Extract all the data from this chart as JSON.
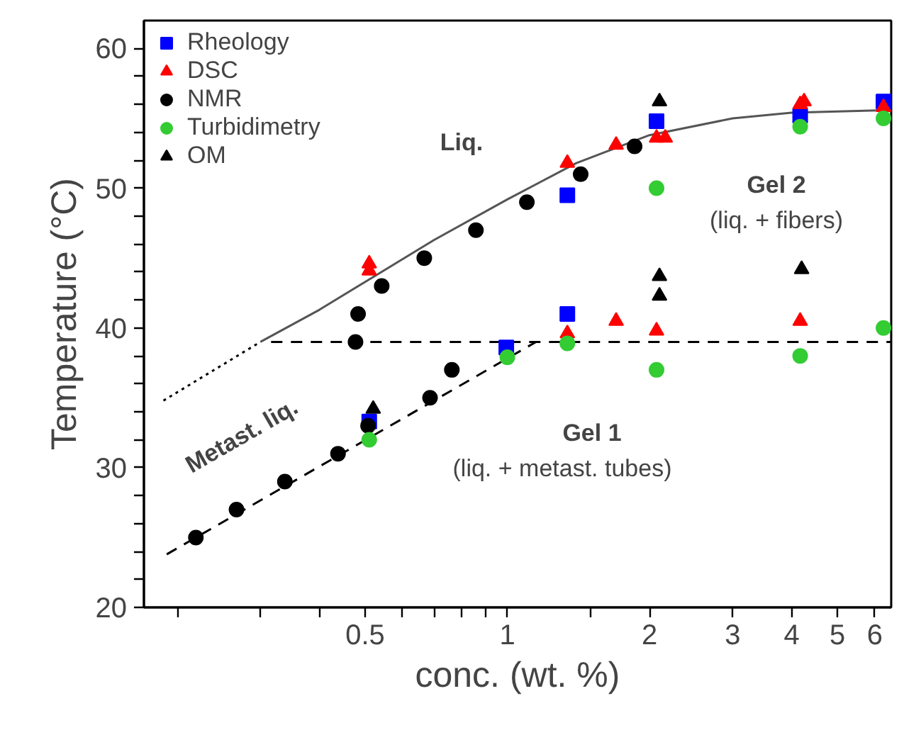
{
  "chart_data": {
    "type": "scatter",
    "xlabel": "conc. (wt. %)",
    "ylabel": "Temperature (°C)",
    "log": "x",
    "grid": false,
    "legend": "top left",
    "xlim": [
      0.17,
      6.5
    ],
    "ylim": [
      20,
      62
    ],
    "xticks": [
      {
        "value": 0.2,
        "label": null
      },
      {
        "value": 0.3,
        "label": null
      },
      {
        "value": 0.4,
        "label": null
      },
      0.5,
      {
        "value": 0.6,
        "label": null
      },
      {
        "value": 0.7,
        "label": null
      },
      {
        "value": 0.8,
        "label": null
      },
      {
        "value": 0.9,
        "label": null
      },
      1,
      {
        "value": 1.5,
        "label": null
      },
      2,
      3,
      4,
      5,
      6
    ],
    "yticks": [
      20,
      {
        "value": 22,
        "label": null
      },
      {
        "value": 24,
        "label": null
      },
      {
        "value": 26,
        "label": null
      },
      {
        "value": 28,
        "label": null
      },
      30,
      {
        "value": 32,
        "label": null
      },
      {
        "value": 34,
        "label": null
      },
      {
        "value": 36,
        "label": null
      },
      {
        "value": 38,
        "label": null
      },
      40,
      {
        "value": 42,
        "label": null
      },
      {
        "value": 44,
        "label": null
      },
      {
        "value": 46,
        "label": null
      },
      {
        "value": 48,
        "label": null
      },
      50,
      {
        "value": 52,
        "label": null
      },
      {
        "value": 54,
        "label": null
      },
      {
        "value": 56,
        "label": null
      },
      {
        "value": 58,
        "label": null
      },
      60
    ],
    "series": [
      {
        "type": "line",
        "line_style": "solid",
        "color": "#555555",
        "x": [
          0.3,
          0.4,
          0.5,
          0.7,
          1.0,
          1.4,
          2.0,
          3.0,
          4.0,
          6.5
        ],
        "values": [
          39.0,
          41.3,
          43.3,
          46.3,
          49.2,
          51.8,
          53.8,
          55.0,
          55.4,
          55.6
        ]
      },
      {
        "type": "line",
        "line_style": "dotted",
        "color": "#000000",
        "x": [
          0.187,
          0.3
        ],
        "values": [
          34.8,
          39.0
        ]
      },
      {
        "type": "line",
        "line_style": "dashed",
        "color": "#000000",
        "x": [
          0.316,
          6.5
        ],
        "values": [
          39.0,
          39.0
        ]
      },
      {
        "type": "line",
        "line_style": "dashed",
        "color": "#000000",
        "x": [
          0.19,
          1.15
        ],
        "values": [
          23.8,
          39.0
        ]
      },
      {
        "name": "Rheology",
        "marker": "square",
        "color": "#0000ff",
        "x": [
          0.51,
          0.995,
          1.34,
          1.34,
          2.07,
          4.17,
          6.26
        ],
        "values": [
          33.3,
          38.6,
          49.5,
          41.0,
          54.8,
          55.2,
          56.2
        ]
      },
      {
        "name": "DSC",
        "marker": "triangle",
        "color": "#ff0000",
        "x": [
          0.51,
          0.51,
          1.34,
          1.34,
          1.7,
          1.7,
          2.07,
          2.16,
          2.07,
          4.17,
          4.25,
          4.17,
          6.26
        ],
        "values": [
          44.6,
          44.1,
          51.8,
          39.6,
          53.1,
          40.5,
          53.6,
          53.6,
          39.8,
          56.0,
          56.2,
          40.5,
          55.8
        ]
      },
      {
        "name": "NMR",
        "marker": "circle",
        "color": "#000000",
        "x": [
          0.219,
          0.267,
          0.338,
          0.438,
          0.507,
          0.686,
          0.763,
          0.477,
          0.483,
          0.542,
          0.667,
          0.858,
          1.1,
          1.43,
          1.86
        ],
        "values": [
          25.0,
          27.0,
          29.0,
          31.0,
          33.0,
          35.0,
          37.0,
          39.0,
          41.0,
          43.0,
          45.0,
          47.0,
          49.0,
          51.0,
          53.0
        ]
      },
      {
        "name": "Turbidimetry",
        "marker": "circle",
        "color": "#33cc33",
        "x": [
          0.51,
          1.0,
          1.34,
          2.07,
          2.07,
          4.17,
          4.17,
          6.26,
          6.26
        ],
        "values": [
          32.0,
          37.9,
          38.9,
          50.0,
          37.0,
          54.4,
          38.0,
          55.0,
          40.0
        ]
      },
      {
        "name": "OM",
        "marker": "triangle",
        "color": "#000000",
        "x": [
          0.52,
          2.1,
          2.1,
          2.1,
          4.2
        ],
        "values": [
          34.2,
          56.2,
          43.7,
          42.3,
          44.2
        ]
      }
    ],
    "annotations": [
      "Liq.",
      "Gel 2",
      "(liq. + fibers)",
      "Gel 1",
      "(liq. + metast. tubes)",
      "Metast. liq."
    ]
  }
}
